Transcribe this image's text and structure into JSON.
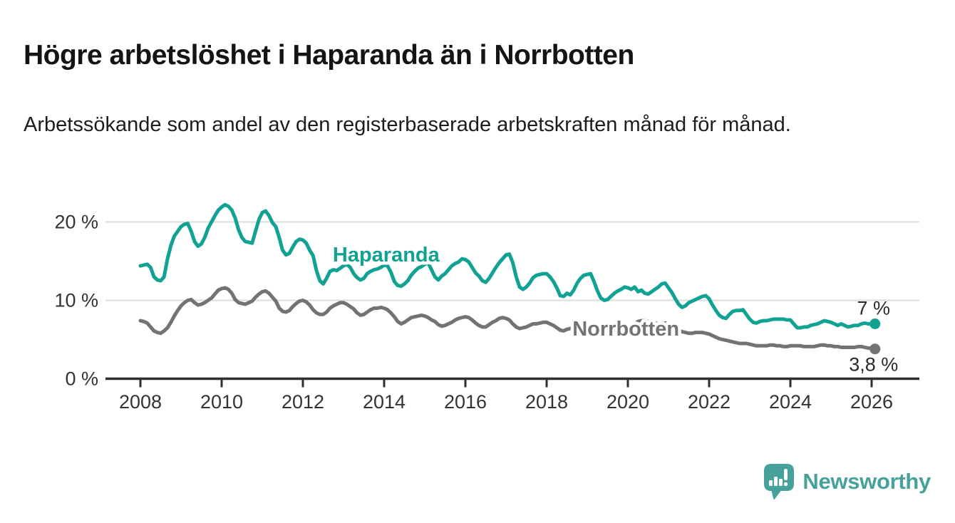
{
  "header": {
    "title": "Högre arbetslöshet i Haparanda än i Norrbotten",
    "subtitle": "Arbetssökande som andel av den registerbaserade arbetskraften månad för månad."
  },
  "chart_data": {
    "type": "line",
    "title": "Högre arbetslöshet i Haparanda än i Norrbotten",
    "subtitle": "Arbetssökande som andel av den registerbaserade arbetskraften månad för månad.",
    "xlabel": "",
    "ylabel": "",
    "y_unit": "%",
    "grid": "horizontal",
    "legend_position": "inline-labels",
    "x_range": [
      2008,
      2026.17
    ],
    "ylim": [
      0,
      23
    ],
    "y_ticks": [
      {
        "value": 0,
        "label": "0 %"
      },
      {
        "value": 10,
        "label": "10 %"
      },
      {
        "value": 20,
        "label": "20 %"
      }
    ],
    "x_ticks": [
      {
        "year": 2008,
        "label": "2008"
      },
      {
        "year": 2010,
        "label": "2010"
      },
      {
        "year": 2012,
        "label": "2012"
      },
      {
        "year": 2014,
        "label": "2014"
      },
      {
        "year": 2016,
        "label": "2016"
      },
      {
        "year": 2018,
        "label": "2018"
      },
      {
        "year": 2020,
        "label": "2020"
      },
      {
        "year": 2022,
        "label": "2022"
      },
      {
        "year": 2024,
        "label": "2024"
      },
      {
        "year": 2026,
        "label": "2026"
      }
    ],
    "series": [
      {
        "name": "Haparanda",
        "color": "#12a294",
        "label_anchor": {
          "x": 2014.05,
          "y": 15.85
        },
        "end_label": "7 %",
        "end_value": 7.0,
        "end_label_side": "above",
        "start_year": 2008,
        "monthly": {
          "2008": [
            14.4,
            14.5,
            14.6,
            14.2,
            13.0,
            12.6,
            12.5,
            13.0,
            15.3,
            17.0,
            18.2,
            18.8
          ],
          "2009": [
            19.4,
            19.7,
            19.8,
            18.8,
            17.5,
            16.9,
            17.2,
            18.0,
            19.2,
            20.0,
            20.8,
            21.5
          ],
          "2010": [
            21.9,
            22.2,
            22.0,
            21.5,
            20.5,
            19.0,
            18.0,
            17.5,
            17.4,
            17.3,
            18.8,
            20.3
          ],
          "2011": [
            21.2,
            21.4,
            20.8,
            19.9,
            19.4,
            18.0,
            16.4,
            15.8,
            16.0,
            16.8,
            17.5,
            17.8
          ],
          "2012": [
            17.7,
            17.3,
            16.4,
            15.7,
            13.8,
            12.5,
            12.1,
            12.8,
            13.7,
            13.9,
            13.8,
            14.1
          ],
          "2013": [
            14.4,
            14.6,
            14.2,
            13.4,
            12.9,
            12.6,
            12.8,
            13.4,
            13.7,
            13.9,
            14.0,
            14.2
          ],
          "2014": [
            14.5,
            14.4,
            13.6,
            12.4,
            11.9,
            11.8,
            12.1,
            12.5,
            13.2,
            13.7,
            14.1,
            14.3
          ],
          "2015": [
            14.6,
            14.8,
            13.9,
            13.0,
            12.6,
            13.1,
            13.4,
            13.9,
            14.4,
            14.7,
            14.9,
            15.3
          ],
          "2016": [
            15.2,
            14.9,
            14.2,
            13.5,
            13.1,
            12.5,
            12.3,
            12.8,
            13.5,
            14.2,
            14.8,
            15.3
          ],
          "2017": [
            15.8,
            15.9,
            14.8,
            13.0,
            11.7,
            11.4,
            11.7,
            12.2,
            12.9,
            13.2,
            13.3,
            13.4
          ],
          "2018": [
            13.4,
            13.0,
            12.4,
            11.6,
            10.6,
            10.5,
            10.9,
            10.7,
            11.3,
            12.2,
            12.8,
            13.2
          ],
          "2019": [
            13.3,
            13.4,
            12.4,
            11.2,
            10.3,
            10.0,
            10.1,
            10.5,
            10.9,
            11.2,
            11.4,
            11.7
          ],
          "2020": [
            11.6,
            11.4,
            11.7,
            11.1,
            11.3,
            10.9,
            10.8,
            11.1,
            11.4,
            11.7,
            12.1,
            12.2
          ],
          "2021": [
            11.6,
            11.0,
            10.2,
            9.5,
            9.1,
            9.3,
            9.7,
            9.9,
            10.1,
            10.3,
            10.5,
            10.6
          ],
          "2022": [
            10.2,
            9.4,
            8.7,
            8.1,
            7.8,
            7.7,
            8.2,
            8.6,
            8.7,
            8.7,
            8.8,
            8.2
          ],
          "2023": [
            7.6,
            7.2,
            7.1,
            7.3,
            7.4,
            7.4,
            7.5,
            7.6,
            7.6,
            7.6,
            7.6,
            7.5
          ],
          "2024": [
            7.5,
            7.0,
            6.5,
            6.5,
            6.6,
            6.6,
            6.8,
            6.9,
            7.0,
            7.2,
            7.4,
            7.3
          ],
          "2025": [
            7.2,
            7.0,
            6.8,
            7.0,
            6.8,
            6.6,
            6.7,
            6.8,
            6.8,
            7.0,
            7.1,
            7.0
          ],
          "2026": [
            7.0,
            7.0
          ]
        }
      },
      {
        "name": "Norrbotten",
        "color": "#737373",
        "label_anchor": {
          "x": 2019.95,
          "y": 6.4
        },
        "end_label": "3,8 %",
        "end_value": 3.8,
        "end_label_side": "below",
        "start_year": 2008,
        "monthly": {
          "2008": [
            7.4,
            7.3,
            7.1,
            6.6,
            6.1,
            5.9,
            5.8,
            6.1,
            6.5,
            7.2,
            8.0,
            8.7
          ],
          "2009": [
            9.3,
            9.7,
            10.0,
            10.1,
            9.7,
            9.4,
            9.5,
            9.7,
            10.0,
            10.3,
            10.8,
            11.3
          ],
          "2010": [
            11.5,
            11.6,
            11.4,
            10.9,
            10.1,
            9.7,
            9.6,
            9.5,
            9.7,
            9.9,
            10.4,
            10.8
          ],
          "2011": [
            11.1,
            11.2,
            10.9,
            10.4,
            9.9,
            9.0,
            8.6,
            8.5,
            8.7,
            9.2,
            9.6,
            9.9
          ],
          "2012": [
            10.0,
            9.8,
            9.4,
            8.8,
            8.4,
            8.2,
            8.2,
            8.5,
            9.0,
            9.3,
            9.5,
            9.7
          ],
          "2013": [
            9.7,
            9.5,
            9.2,
            8.9,
            8.4,
            8.1,
            8.2,
            8.5,
            8.8,
            9.0,
            9.0,
            9.1
          ],
          "2014": [
            9.0,
            8.8,
            8.4,
            7.9,
            7.3,
            7.0,
            7.2,
            7.5,
            7.8,
            7.9,
            8.0,
            8.1
          ],
          "2015": [
            8.0,
            7.8,
            7.5,
            7.3,
            6.9,
            6.7,
            6.8,
            7.0,
            7.2,
            7.5,
            7.7,
            7.8
          ],
          "2016": [
            7.9,
            7.8,
            7.5,
            7.1,
            6.8,
            6.6,
            6.6,
            6.9,
            7.2,
            7.4,
            7.7,
            7.8
          ],
          "2017": [
            7.7,
            7.5,
            7.0,
            6.6,
            6.4,
            6.5,
            6.6,
            6.8,
            7.0,
            7.0,
            7.1,
            7.2
          ],
          "2018": [
            7.2,
            7.0,
            6.8,
            6.5,
            6.2,
            6.1,
            6.3,
            6.4,
            6.6,
            6.8,
            6.8,
            6.9
          ],
          "2019": [
            6.9,
            6.8,
            6.6,
            6.3,
            6.1,
            6.0,
            6.1,
            6.2,
            6.4,
            6.5,
            6.6,
            6.6
          ],
          "2020": [
            6.7,
            6.8,
            7.0,
            7.3,
            7.4,
            7.4,
            7.3,
            7.2,
            7.1,
            7.0,
            7.0,
            7.1
          ],
          "2021": [
            7.0,
            6.8,
            6.5,
            6.2,
            6.0,
            5.9,
            5.8,
            5.8,
            5.9,
            5.9,
            5.9,
            5.8
          ],
          "2022": [
            5.7,
            5.5,
            5.3,
            5.1,
            5.0,
            4.9,
            4.8,
            4.7,
            4.6,
            4.5,
            4.5,
            4.5
          ],
          "2023": [
            4.4,
            4.3,
            4.2,
            4.2,
            4.2,
            4.2,
            4.3,
            4.3,
            4.2,
            4.2,
            4.1,
            4.1
          ],
          "2024": [
            4.2,
            4.2,
            4.2,
            4.2,
            4.1,
            4.1,
            4.1,
            4.1,
            4.2,
            4.3,
            4.3,
            4.2
          ],
          "2025": [
            4.2,
            4.1,
            4.1,
            4.0,
            4.0,
            4.0,
            4.0,
            4.0,
            4.1,
            4.1,
            4.0,
            3.9
          ],
          "2026": [
            3.9,
            3.8
          ]
        }
      }
    ],
    "colors": {
      "accent_teal": "#12a294",
      "series_gray": "#737373",
      "grid": "#dcdcdc",
      "axis": "#2f2f2f",
      "tick_text": "#333333",
      "end_label_text": "#2b2b2b"
    }
  },
  "logo": {
    "text": "Newsworthy",
    "color": "#45a19a",
    "icon": "speech-bubble-bar-chart-icon"
  }
}
